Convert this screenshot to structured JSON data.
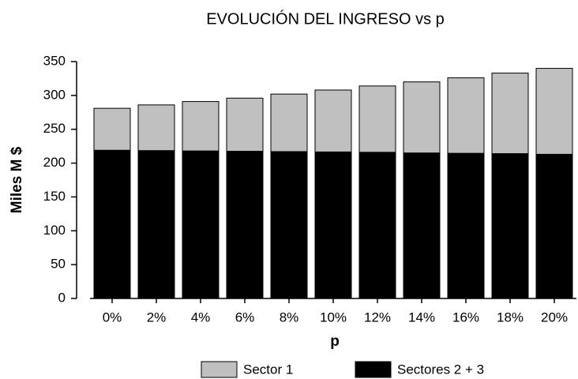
{
  "chart_data": {
    "type": "stacked_bar",
    "title": "EVOLUCIÓN DEL INGRESO vs p",
    "x_label": "p",
    "y_label": "Miles M $",
    "categories": [
      "0%",
      "2%",
      "4%",
      "6%",
      "8%",
      "10%",
      "12%",
      "14%",
      "16%",
      "18%",
      "20%"
    ],
    "series": [
      {
        "name": "Sector 1",
        "color": "#c0c0c0",
        "values": [
          62,
          67.5,
          73,
          78.5,
          85,
          91.5,
          98,
          105,
          111.5,
          119,
          127
        ]
      },
      {
        "name": "Sectores 2 + 3",
        "color": "#000000",
        "values": [
          219,
          218.5,
          218,
          217.5,
          217,
          216.5,
          216,
          215,
          214.5,
          214,
          213
        ]
      }
    ],
    "ylim": [
      0,
      350
    ],
    "yticks": [
      0,
      50,
      100,
      150,
      200,
      250,
      300,
      350
    ],
    "grid": false,
    "legend": "bottom"
  }
}
